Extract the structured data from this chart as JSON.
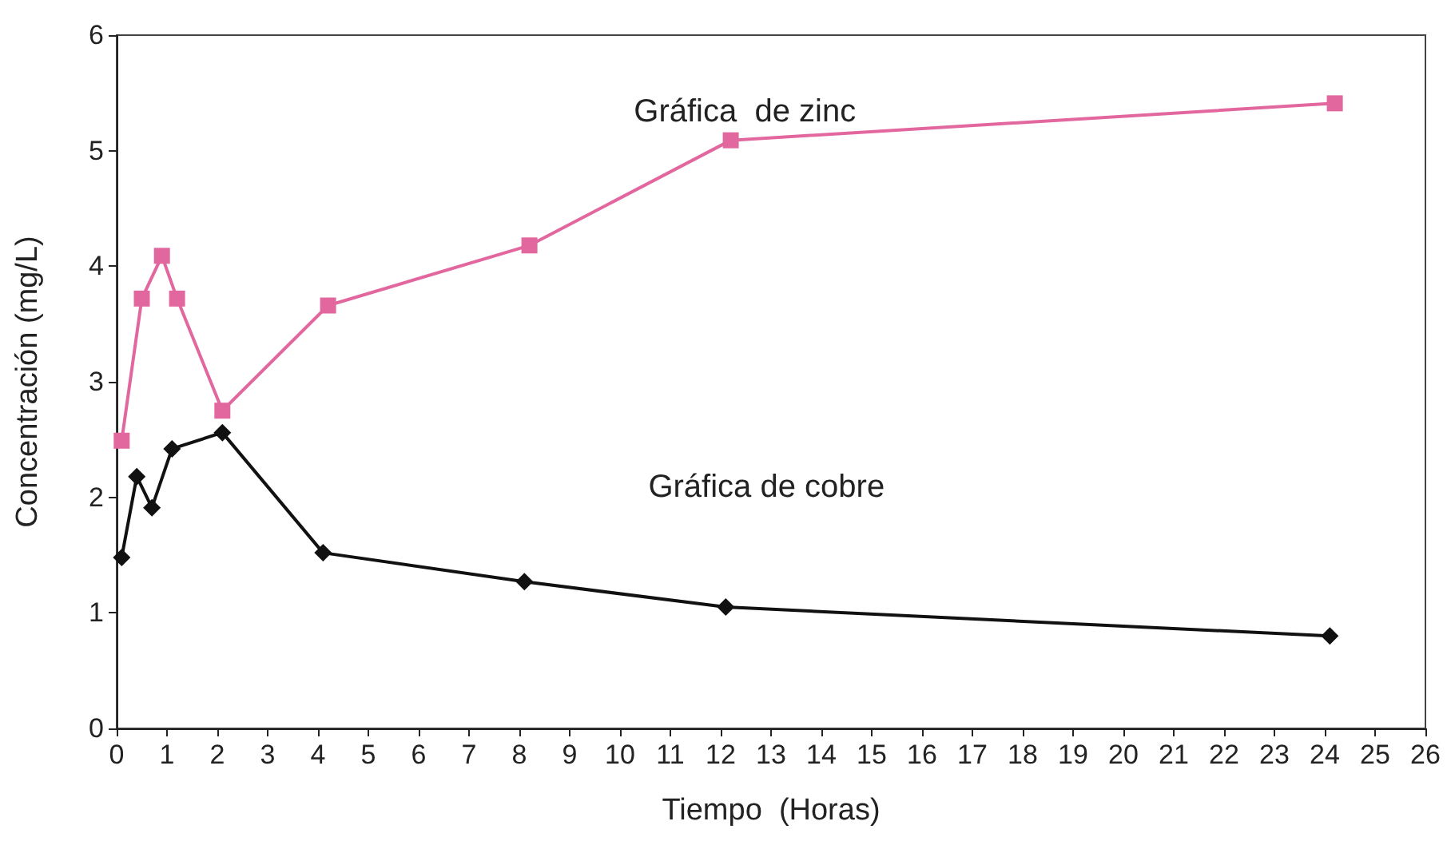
{
  "chart_data": {
    "type": "line",
    "xlabel": "Tiempo  (Horas)",
    "ylabel": "Concentración (mg/L)",
    "xlim": [
      0,
      26
    ],
    "xticks": [
      0,
      1,
      2,
      3,
      4,
      5,
      6,
      7,
      8,
      9,
      10,
      11,
      12,
      13,
      14,
      15,
      16,
      17,
      18,
      19,
      20,
      21,
      22,
      23,
      24,
      25,
      26
    ],
    "ylim": [
      0,
      6
    ],
    "yticks": [
      0,
      1,
      2,
      3,
      4,
      5,
      6
    ],
    "grid": false,
    "legend": false,
    "series": [
      {
        "name": "Gráfica  de zinc",
        "color": "#e2679f",
        "marker": "square",
        "x": [
          0.1,
          0.5,
          0.9,
          1.2,
          2.1,
          4.2,
          8.2,
          12.2,
          24.2
        ],
        "values": [
          2.49,
          3.72,
          4.09,
          3.72,
          2.75,
          3.66,
          4.18,
          5.09,
          5.41
        ]
      },
      {
        "name": "Gráfica de cobre",
        "color": "#111111",
        "marker": "diamond",
        "x": [
          0.1,
          0.4,
          0.7,
          1.1,
          2.1,
          4.1,
          8.1,
          12.1,
          24.1
        ],
        "values": [
          1.48,
          2.18,
          1.91,
          2.42,
          2.56,
          1.52,
          1.27,
          1.05,
          0.8
        ]
      }
    ]
  }
}
